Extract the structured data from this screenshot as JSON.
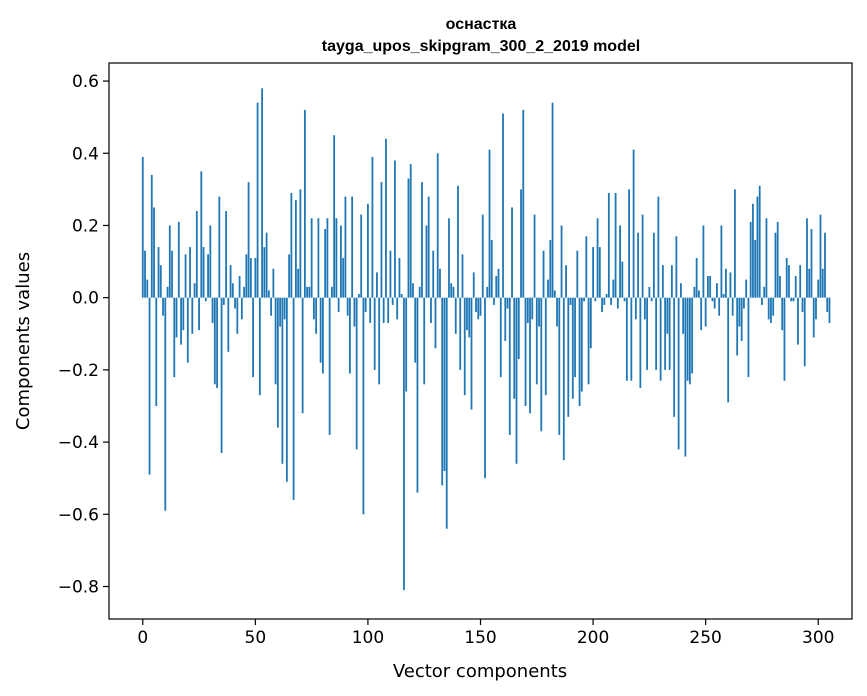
{
  "chart_data": {
    "type": "bar",
    "title": "оснастка",
    "subtitle": "tayga_upos_skipgram_300_2_2019 model",
    "xlabel": "Vector components",
    "ylabel": "Components values",
    "xlim": [
      -15,
      315
    ],
    "ylim": [
      -0.89,
      0.65
    ],
    "xticks": [
      0,
      50,
      100,
      150,
      200,
      250,
      300
    ],
    "xtick_labels": [
      "0",
      "50",
      "100",
      "150",
      "200",
      "250",
      "300"
    ],
    "yticks": [
      -0.8,
      -0.6,
      -0.4,
      -0.2,
      0.0,
      0.2,
      0.4,
      0.6
    ],
    "ytick_labels": [
      "−0.8",
      "−0.6",
      "−0.4",
      "−0.2",
      "0.0",
      "0.2",
      "0.4",
      "0.6"
    ],
    "grid": false,
    "color": "#1f77b4",
    "x_start": 0,
    "values": [
      0.39,
      0.13,
      0.05,
      -0.49,
      0.34,
      0.25,
      -0.3,
      0.14,
      0.09,
      -0.05,
      -0.59,
      0.03,
      0.2,
      0.13,
      -0.22,
      -0.11,
      0.21,
      -0.13,
      -0.09,
      0.12,
      -0.18,
      0.14,
      -0.1,
      0.04,
      0.24,
      -0.09,
      0.35,
      0.14,
      -0.01,
      0.12,
      0.2,
      -0.07,
      -0.24,
      -0.25,
      0.28,
      -0.43,
      -0.02,
      0.24,
      -0.15,
      0.09,
      0.04,
      -0.03,
      -0.1,
      0.06,
      -0.06,
      0.03,
      0.12,
      0.32,
      0.11,
      -0.22,
      0.11,
      0.54,
      -0.27,
      0.58,
      0.14,
      0.18,
      0.02,
      -0.05,
      0.08,
      -0.24,
      -0.36,
      -0.08,
      -0.46,
      -0.06,
      -0.51,
      0.12,
      0.29,
      -0.56,
      0.27,
      0.08,
      0.3,
      -0.32,
      0.52,
      0.03,
      0.03,
      0.22,
      -0.06,
      -0.1,
      0.22,
      -0.18,
      -0.21,
      0.19,
      0.22,
      -0.38,
      0.03,
      0.45,
      0.22,
      -0.04,
      0.2,
      0.11,
      0.28,
      -0.05,
      -0.21,
      0.28,
      -0.08,
      -0.42,
      0.01,
      0.23,
      -0.6,
      -0.04,
      0.26,
      -0.07,
      0.39,
      -0.2,
      0.07,
      -0.24,
      0.32,
      -0.07,
      0.44,
      -0.07,
      0.13,
      -0.02,
      0.38,
      -0.06,
      0.11,
      0.01,
      -0.81,
      -0.26,
      0.33,
      0.37,
      0.04,
      -0.18,
      -0.54,
      0.03,
      0.32,
      -0.24,
      0.2,
      0.28,
      -0.07,
      0.13,
      -0.14,
      0.4,
      0.08,
      -0.52,
      -0.48,
      -0.64,
      0.22,
      0.04,
      0.03,
      -0.1,
      0.31,
      -0.2,
      0.12,
      -0.27,
      -0.09,
      -0.11,
      -0.31,
      0.07,
      -0.04,
      -0.06,
      -0.05,
      0.23,
      -0.5,
      0.03,
      0.41,
      0.16,
      -0.02,
      0.06,
      0.08,
      -0.22,
      0.51,
      -0.12,
      -0.03,
      -0.38,
      0.25,
      -0.28,
      -0.46,
      -0.17,
      0.3,
      0.52,
      -0.3,
      -0.07,
      -0.32,
      -0.06,
      0.23,
      -0.24,
      -0.08,
      -0.37,
      0.13,
      -0.27,
      0.05,
      0.16,
      0.54,
      0.02,
      -0.08,
      -0.38,
      0.2,
      -0.45,
      0.09,
      -0.33,
      -0.02,
      -0.28,
      -0.22,
      0.13,
      -0.3,
      -0.26,
      -0.01,
      0.17,
      -0.24,
      -0.14,
      0.14,
      -0.01,
      0.22,
      0.14,
      -0.04,
      -0.02,
      0.01,
      0.29,
      -0.02,
      0.05,
      0.29,
      -0.03,
      0.2,
      0.1,
      -0.01,
      -0.23,
      0.3,
      -0.23,
      0.41,
      -0.06,
      0.18,
      -0.25,
      0.23,
      -0.06,
      -0.2,
      0.03,
      -0.01,
      0.18,
      -0.2,
      0.28,
      -0.23,
      0.09,
      -0.2,
      -0.1,
      -0.2,
      0.09,
      -0.33,
      0.17,
      -0.42,
      0.04,
      -0.1,
      -0.44,
      -0.23,
      -0.24,
      -0.21,
      0.03,
      0.11,
      0.02,
      -0.09,
      0.2,
      -0.08,
      0.06,
      0.06,
      -0.01,
      -0.03,
      0.04,
      -0.05,
      0.2,
      0.01,
      0.08,
      -0.29,
      0.07,
      -0.05,
      0.3,
      -0.16,
      -0.08,
      -0.12,
      -0.03,
      0.05,
      -0.22,
      0.21,
      0.26,
      0.16,
      0.28,
      0.31,
      -0.02,
      0.03,
      0.22,
      -0.06,
      -0.07,
      -0.05,
      0.18,
      0.21,
      0.06,
      -0.09,
      -0.23,
      0.11,
      0.09,
      -0.01,
      -0.01,
      0.06,
      -0.13,
      0.09,
      -0.04,
      -0.19,
      0.22,
      0.08,
      0.19,
      -0.11,
      -0.06,
      0.05,
      0.23,
      0.08,
      0.18,
      -0.04,
      -0.07
    ]
  }
}
